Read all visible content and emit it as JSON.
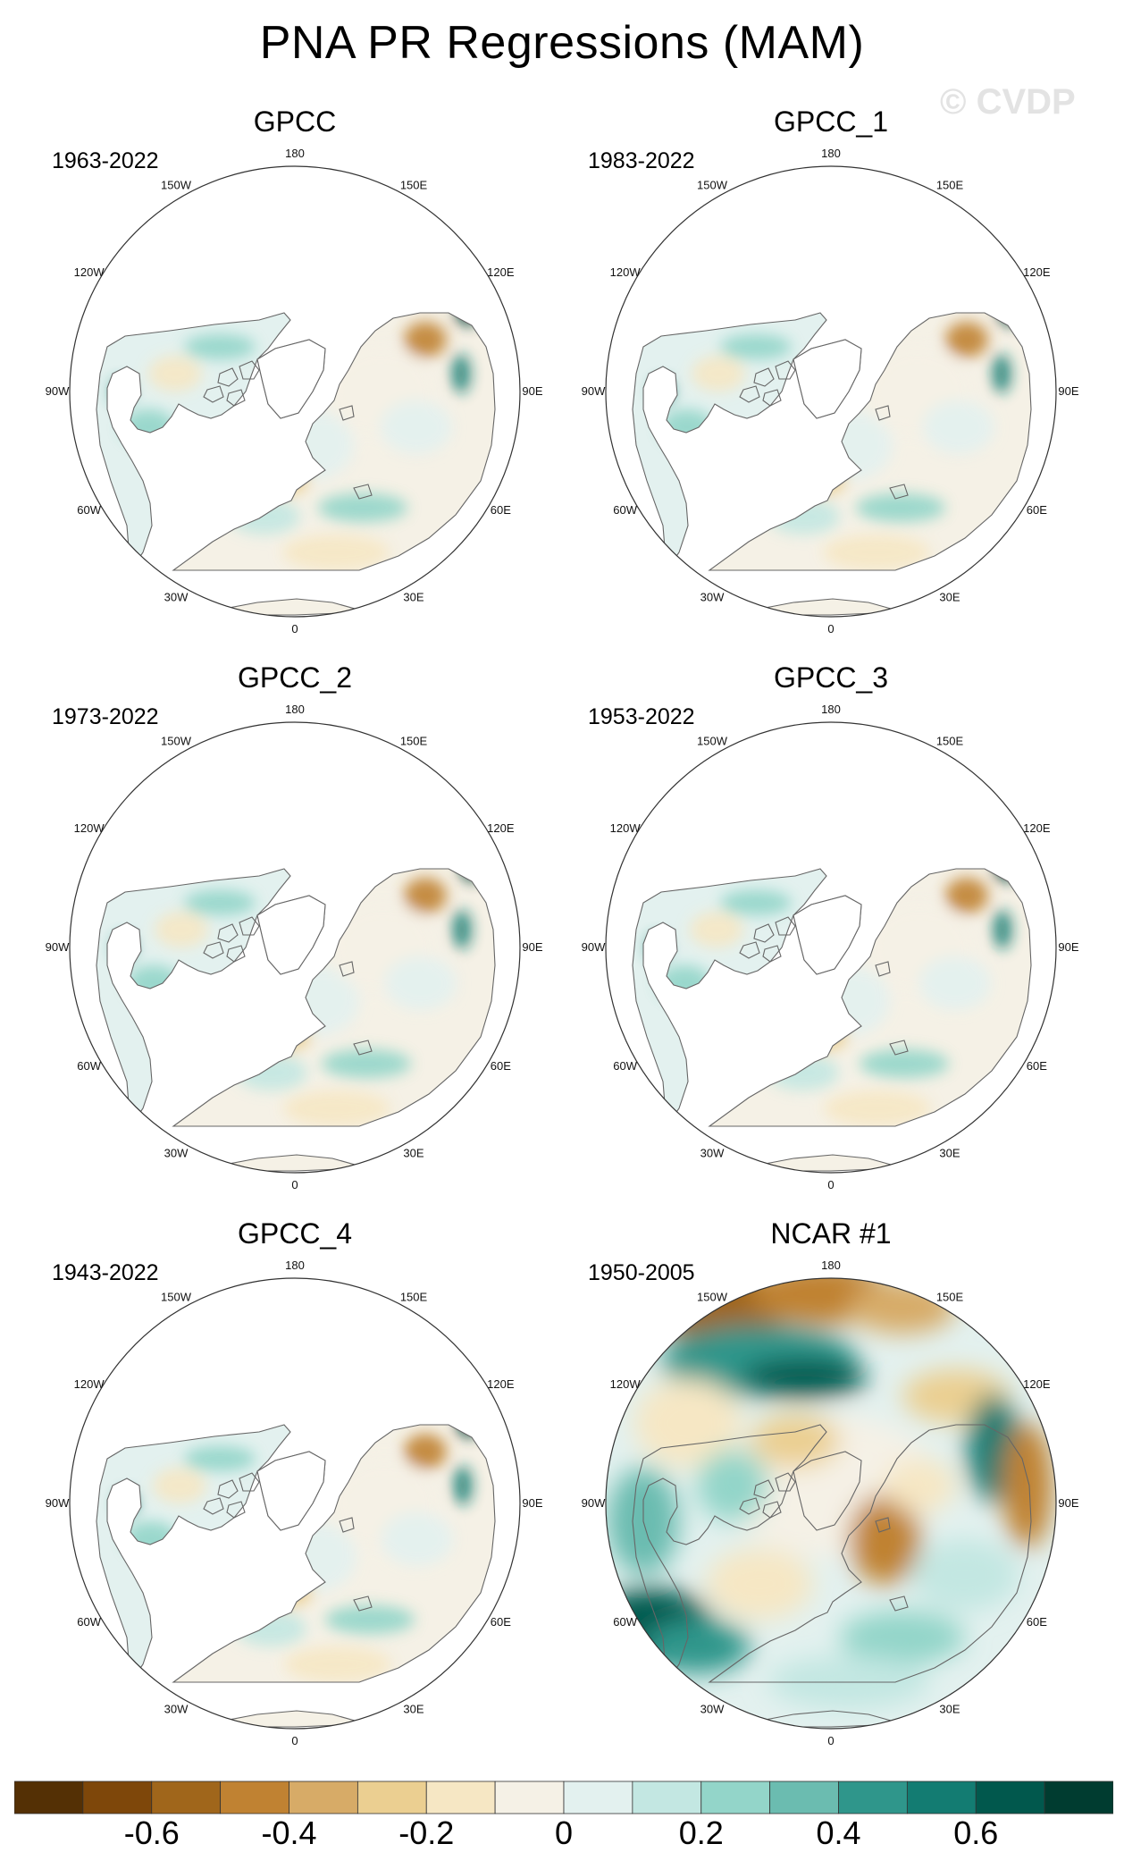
{
  "title": "PNA PR Regressions (MAM)",
  "watermark": "© CVDP",
  "panels": [
    {
      "name": "GPCC",
      "period": "1963-2022",
      "style": "obs"
    },
    {
      "name": "GPCC_1",
      "period": "1983-2022",
      "style": "obs"
    },
    {
      "name": "GPCC_2",
      "period": "1973-2022",
      "style": "obs"
    },
    {
      "name": "GPCC_3",
      "period": "1953-2022",
      "style": "obs"
    },
    {
      "name": "GPCC_4",
      "period": "1943-2022",
      "style": "obs"
    },
    {
      "name": "NCAR #1",
      "period": "1950-2005",
      "style": "model"
    }
  ],
  "longitude_labels": [
    "180",
    "150E",
    "120E",
    "90E",
    "60E",
    "30E",
    "0",
    "30W",
    "60W",
    "90W",
    "120W",
    "150W"
  ],
  "colorbar": {
    "colors": [
      "#543005",
      "#7e470a",
      "#a0661b",
      "#c08232",
      "#d7ab67",
      "#ebcf91",
      "#f6e7c4",
      "#f5f1e6",
      "#e3f1ef",
      "#c3e7e2",
      "#93d5c9",
      "#6bbcb0",
      "#2f968b",
      "#137c72",
      "#01584d",
      "#003c30"
    ],
    "tick_values": [
      -0.6,
      -0.4,
      -0.2,
      0,
      0.2,
      0.4,
      0.6
    ],
    "tick_labels": [
      "-0.6",
      "-0.4",
      "-0.2",
      "0",
      "0.2",
      "0.4",
      "0.6"
    ],
    "range": [
      -0.8,
      0.8
    ]
  }
}
